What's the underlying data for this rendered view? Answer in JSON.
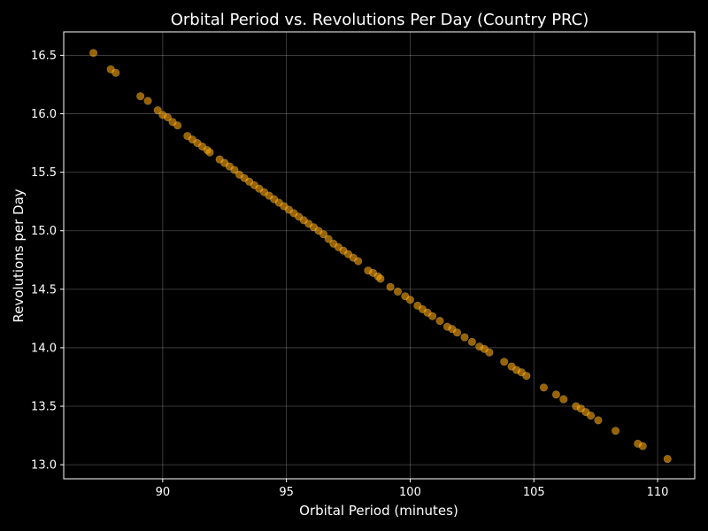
{
  "chart_data": {
    "type": "scatter",
    "title": "Orbital Period vs. Revolutions Per Day (Country PRC)",
    "xlabel": "Orbital Period (minutes)",
    "ylabel": "Revolutions per Day",
    "xlim": [
      86.0,
      111.5
    ],
    "ylim": [
      12.88,
      16.7
    ],
    "x_ticks": [
      90,
      95,
      100,
      105,
      110
    ],
    "y_ticks": [
      13.0,
      13.5,
      14.0,
      14.5,
      15.0,
      15.5,
      16.0,
      16.5
    ],
    "x_tick_labels": [
      "90",
      "95",
      "100",
      "105",
      "110"
    ],
    "y_tick_labels": [
      "13.0",
      "13.5",
      "14.0",
      "14.5",
      "15.0",
      "15.5",
      "16.0",
      "16.5"
    ],
    "grid": true,
    "point_color": "#ffa500",
    "background": "#000000",
    "x": [
      87.2,
      87.9,
      88.1,
      89.1,
      89.4,
      89.8,
      90.0,
      90.2,
      90.4,
      90.6,
      91.0,
      91.2,
      91.4,
      91.6,
      91.8,
      91.9,
      92.3,
      92.5,
      92.7,
      92.9,
      93.1,
      93.3,
      93.5,
      93.7,
      93.9,
      94.1,
      94.3,
      94.5,
      94.7,
      94.9,
      95.1,
      95.3,
      95.5,
      95.7,
      95.9,
      96.1,
      96.3,
      96.5,
      96.7,
      96.9,
      97.1,
      97.3,
      97.5,
      97.7,
      97.9,
      98.3,
      98.5,
      98.7,
      98.8,
      99.2,
      99.5,
      99.8,
      100.0,
      100.3,
      100.5,
      100.7,
      100.9,
      101.2,
      101.5,
      101.7,
      101.9,
      102.2,
      102.5,
      102.8,
      103.0,
      103.2,
      103.8,
      104.1,
      104.3,
      104.5,
      104.7,
      105.4,
      105.9,
      106.2,
      106.7,
      106.9,
      107.1,
      107.3,
      107.6,
      108.3,
      109.2,
      109.4,
      110.4
    ],
    "y": [
      16.52,
      16.38,
      16.35,
      16.15,
      16.11,
      16.03,
      15.99,
      15.97,
      15.93,
      15.9,
      15.81,
      15.78,
      15.75,
      15.72,
      15.69,
      15.67,
      15.61,
      15.58,
      15.55,
      15.52,
      15.48,
      15.45,
      15.42,
      15.39,
      15.36,
      15.33,
      15.3,
      15.27,
      15.24,
      15.21,
      15.18,
      15.15,
      15.12,
      15.09,
      15.06,
      15.03,
      15.0,
      14.97,
      14.93,
      14.89,
      14.86,
      14.83,
      14.8,
      14.77,
      14.74,
      14.66,
      14.64,
      14.61,
      14.59,
      14.52,
      14.48,
      14.44,
      14.41,
      14.36,
      14.33,
      14.3,
      14.27,
      14.23,
      14.18,
      14.16,
      14.13,
      14.09,
      14.05,
      14.01,
      13.99,
      13.96,
      13.88,
      13.84,
      13.81,
      13.79,
      13.76,
      13.66,
      13.6,
      13.56,
      13.5,
      13.48,
      13.45,
      13.42,
      13.38,
      13.29,
      13.18,
      13.16,
      13.05
    ]
  }
}
